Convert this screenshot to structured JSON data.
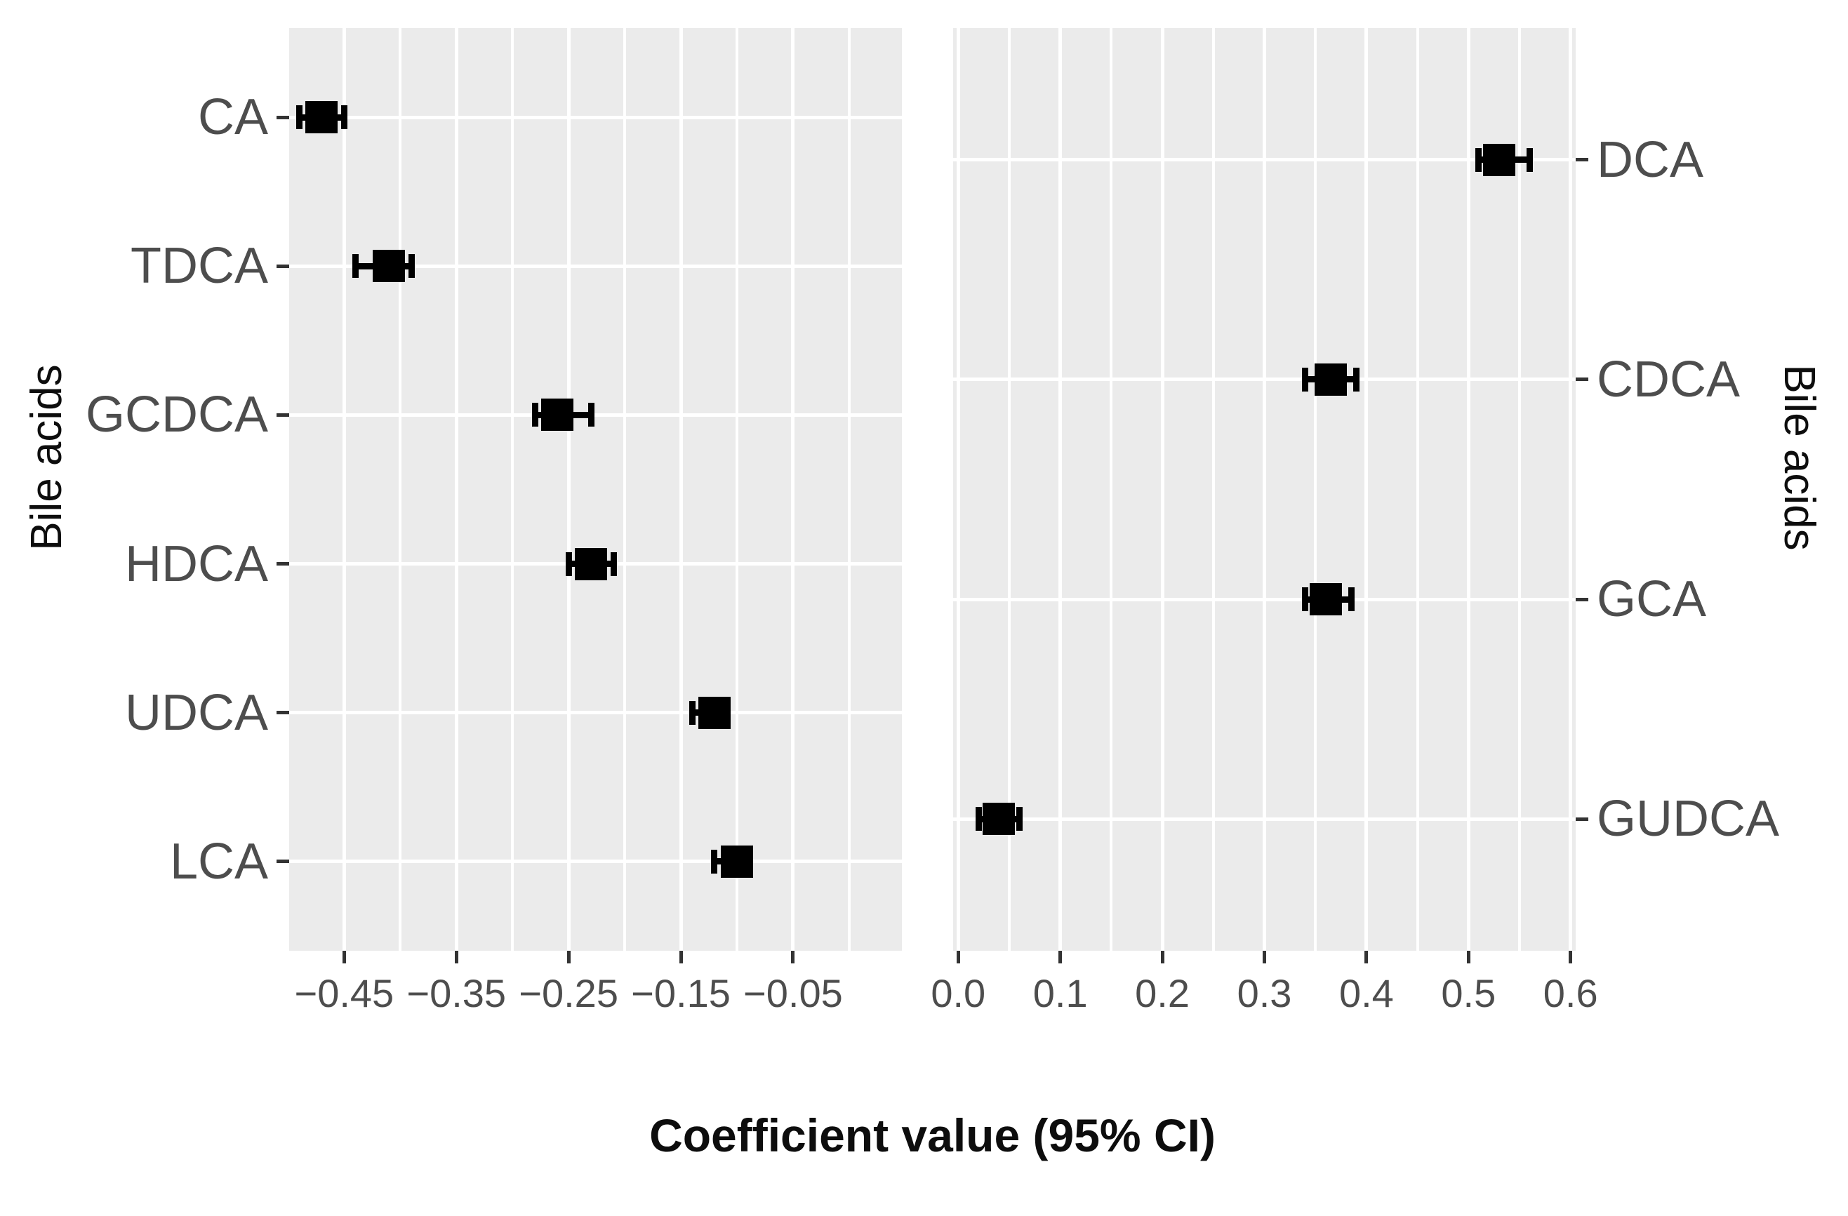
{
  "chart_data": {
    "type": "scatter",
    "subtype": "forest-plot-with-95ci-error-bars",
    "title": "",
    "xlabel": "Coefficient value (95% CI)",
    "ylabel": "Bile acids",
    "grid": true,
    "legend_position": "none",
    "panels": [
      {
        "id": "left",
        "ylabel": "Bile acids",
        "ylabel_side": "left",
        "xlim": [
          -0.499,
          0.047
        ],
        "xticks": [
          -0.45,
          -0.35,
          -0.25,
          -0.15,
          -0.05
        ],
        "xtick_labels": [
          "−0.45",
          "−0.35",
          "−0.25",
          "−0.15",
          "−0.05"
        ],
        "xminor": [
          -0.4,
          -0.3,
          -0.2,
          -0.1,
          0.0
        ],
        "categories": [
          "CA",
          "TDCA",
          "GCDCA",
          "HDCA",
          "UDCA",
          "LCA"
        ],
        "points": [
          {
            "label": "CA",
            "value": -0.47,
            "ci_low": -0.49,
            "ci_high": -0.45
          },
          {
            "label": "TDCA",
            "value": -0.41,
            "ci_low": -0.44,
            "ci_high": -0.39
          },
          {
            "label": "GCDCA",
            "value": -0.26,
            "ci_low": -0.28,
            "ci_high": -0.23
          },
          {
            "label": "HDCA",
            "value": -0.23,
            "ci_low": -0.25,
            "ci_high": -0.21
          },
          {
            "label": "UDCA",
            "value": -0.12,
            "ci_low": -0.14,
            "ci_high": -0.11
          },
          {
            "label": "LCA",
            "value": -0.1,
            "ci_low": -0.12,
            "ci_high": -0.09
          }
        ]
      },
      {
        "id": "right",
        "ylabel": "Bile acids",
        "ylabel_side": "right",
        "xlim": [
          -0.005,
          0.605
        ],
        "xticks": [
          0.0,
          0.1,
          0.2,
          0.3,
          0.4,
          0.5,
          0.6
        ],
        "xtick_labels": [
          "0.0",
          "0.1",
          "0.2",
          "0.3",
          "0.4",
          "0.5",
          "0.6"
        ],
        "xminor": [
          0.05,
          0.15,
          0.25,
          0.35,
          0.45,
          0.55
        ],
        "categories": [
          "DCA",
          "CDCA",
          "GCA",
          "GUDCA"
        ],
        "points": [
          {
            "label": "DCA",
            "value": 0.53,
            "ci_low": 0.51,
            "ci_high": 0.56
          },
          {
            "label": "CDCA",
            "value": 0.365,
            "ci_low": 0.34,
            "ci_high": 0.39
          },
          {
            "label": "GCA",
            "value": 0.36,
            "ci_low": 0.34,
            "ci_high": 0.385
          },
          {
            "label": "GUDCA",
            "value": 0.04,
            "ci_low": 0.02,
            "ci_high": 0.06
          }
        ]
      }
    ]
  },
  "colors": {
    "page_bg": "#ffffff",
    "panel_bg": "#ebebeb",
    "grid_major": "#ffffff",
    "grid_minor": "#ffffff",
    "marker": "#000000",
    "tick_mark": "#333333",
    "tick_text": "#4d4d4d",
    "axis_title": "#0d0d0d"
  }
}
